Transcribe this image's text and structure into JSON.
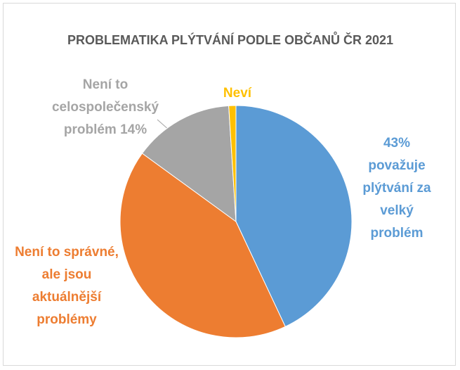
{
  "chart_data": {
    "type": "pie",
    "title": "PROBLEMATIKA PLÝTVÁNÍ PODLE OBČANŮ ČR 2021",
    "categories": [
      "43% považuje plýtvání za velký problém",
      "Není to správné, ale jsou aktuálnější problémy",
      "Není to celospolečenský problém 14%",
      "Neví"
    ],
    "values": [
      43,
      42,
      14,
      1
    ],
    "colors": [
      "#5b9bd5",
      "#ed7d31",
      "#a5a5a5",
      "#ffc000"
    ]
  }
}
